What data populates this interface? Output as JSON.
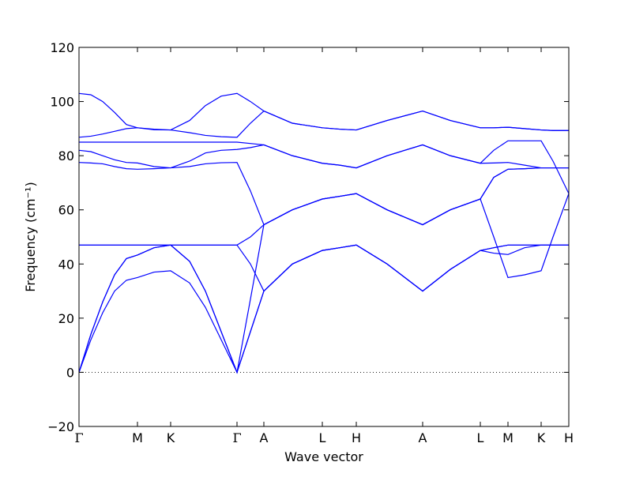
{
  "chart_data": {
    "type": "line",
    "xlabel": "Wave vector",
    "ylabel": "Frequency (cm⁻¹)",
    "color": "#0000ff",
    "x": [
      0,
      0.15,
      0.3,
      0.45,
      0.6,
      0.74,
      0.95,
      1.16,
      1.4,
      1.6,
      1.8,
      2.0,
      2.17,
      2.34,
      2.7,
      3.08,
      3.3,
      3.51,
      3.9,
      4.35,
      4.7,
      5.08,
      5.25,
      5.43,
      5.64,
      5.85,
      6.0,
      6.2
    ],
    "series": [
      {
        "values": [
          0,
          12,
          22,
          30,
          34,
          35,
          37,
          37.5,
          33,
          24,
          12,
          0,
          15,
          30,
          40,
          45,
          46,
          47,
          40,
          30,
          38,
          45,
          44,
          43.5,
          46,
          47,
          47,
          47
        ]
      },
      {
        "values": [
          0,
          14,
          26,
          36,
          42,
          43.3,
          46,
          47,
          41,
          30,
          15,
          0,
          15,
          30,
          40,
          45,
          46,
          47,
          40,
          30,
          38,
          45,
          46,
          47,
          47,
          47,
          47,
          47
        ]
      },
      {
        "values": [
          0,
          14,
          26,
          36,
          42,
          43.3,
          46,
          47,
          41,
          30,
          15,
          0,
          27,
          54.5,
          60,
          64,
          65,
          66,
          60,
          54.5,
          60,
          64,
          50,
          35,
          36,
          37.5,
          50,
          66
        ]
      },
      {
        "values": [
          47,
          47,
          47,
          47,
          47,
          47,
          47,
          47,
          47,
          47,
          47,
          47,
          40,
          30,
          40,
          45,
          46,
          47,
          40,
          30,
          38,
          45,
          46,
          47,
          47,
          47,
          47,
          47
        ]
      },
      {
        "values": [
          47,
          47,
          47,
          47,
          47,
          47,
          47,
          47,
          47,
          47,
          47,
          47,
          50,
          54.5,
          60,
          64,
          65,
          66,
          60,
          54.5,
          60,
          64,
          72,
          75,
          75.2,
          75.5,
          75.5,
          75.5
        ]
      },
      {
        "values": [
          77.5,
          77.3,
          77,
          76,
          75.2,
          75,
          75.2,
          75.5,
          76,
          77,
          77.4,
          77.5,
          67,
          54.5,
          60,
          64,
          65,
          66,
          60,
          54.5,
          60,
          64,
          72,
          75,
          75.2,
          75.5,
          75.5,
          75.5
        ]
      },
      {
        "values": [
          82,
          81.5,
          80,
          78.5,
          77.5,
          77.3,
          76,
          75.5,
          78,
          81,
          82,
          82.3,
          83,
          84,
          80,
          77.2,
          76.5,
          75.5,
          80,
          84,
          80,
          77.2,
          77.3,
          77.5,
          76.5,
          75.5,
          75.5,
          75.5
        ]
      },
      {
        "values": [
          85,
          85,
          85,
          85,
          85,
          85,
          85,
          85,
          85,
          85,
          85,
          85,
          84.5,
          84,
          80,
          77.2,
          76.5,
          75.5,
          80,
          84,
          80,
          77.2,
          82,
          85.5,
          85.5,
          85.5,
          78,
          66
        ]
      },
      {
        "values": [
          86.8,
          87.2,
          88,
          89,
          90,
          90.3,
          89.8,
          89.5,
          88.5,
          87.5,
          87,
          86.8,
          92,
          96.5,
          92,
          90.3,
          89.8,
          89.5,
          93,
          96.5,
          93,
          90.3,
          90.3,
          90.5,
          90,
          89.5,
          89.3,
          89.3
        ]
      },
      {
        "values": [
          103,
          102.5,
          100,
          96,
          91.5,
          90.3,
          89.6,
          89.5,
          93,
          98.5,
          102,
          103,
          100,
          96.5,
          92,
          90.3,
          89.8,
          89.5,
          93,
          96.5,
          93,
          90.3,
          90.3,
          90.5,
          90,
          89.5,
          89.3,
          89.3
        ]
      }
    ],
    "xlim": [
      0,
      6.2
    ],
    "xticks": [
      {
        "value": 0,
        "label": "Γ"
      },
      {
        "value": 0.74,
        "label": "M"
      },
      {
        "value": 1.16,
        "label": "K"
      },
      {
        "value": 2.0,
        "label": "Γ"
      },
      {
        "value": 2.34,
        "label": "A"
      },
      {
        "value": 3.08,
        "label": "L"
      },
      {
        "value": 3.51,
        "label": "H"
      },
      {
        "value": 4.35,
        "label": "A"
      },
      {
        "value": 5.08,
        "label": "L"
      },
      {
        "value": 5.43,
        "label": "M"
      },
      {
        "value": 5.85,
        "label": "K"
      },
      {
        "value": 6.2,
        "label": "H"
      }
    ],
    "ylim": [
      -20,
      120
    ],
    "yticks": [
      {
        "value": -20,
        "label": "−20"
      },
      0,
      20,
      40,
      60,
      80,
      100,
      120
    ],
    "hline": 0
  }
}
